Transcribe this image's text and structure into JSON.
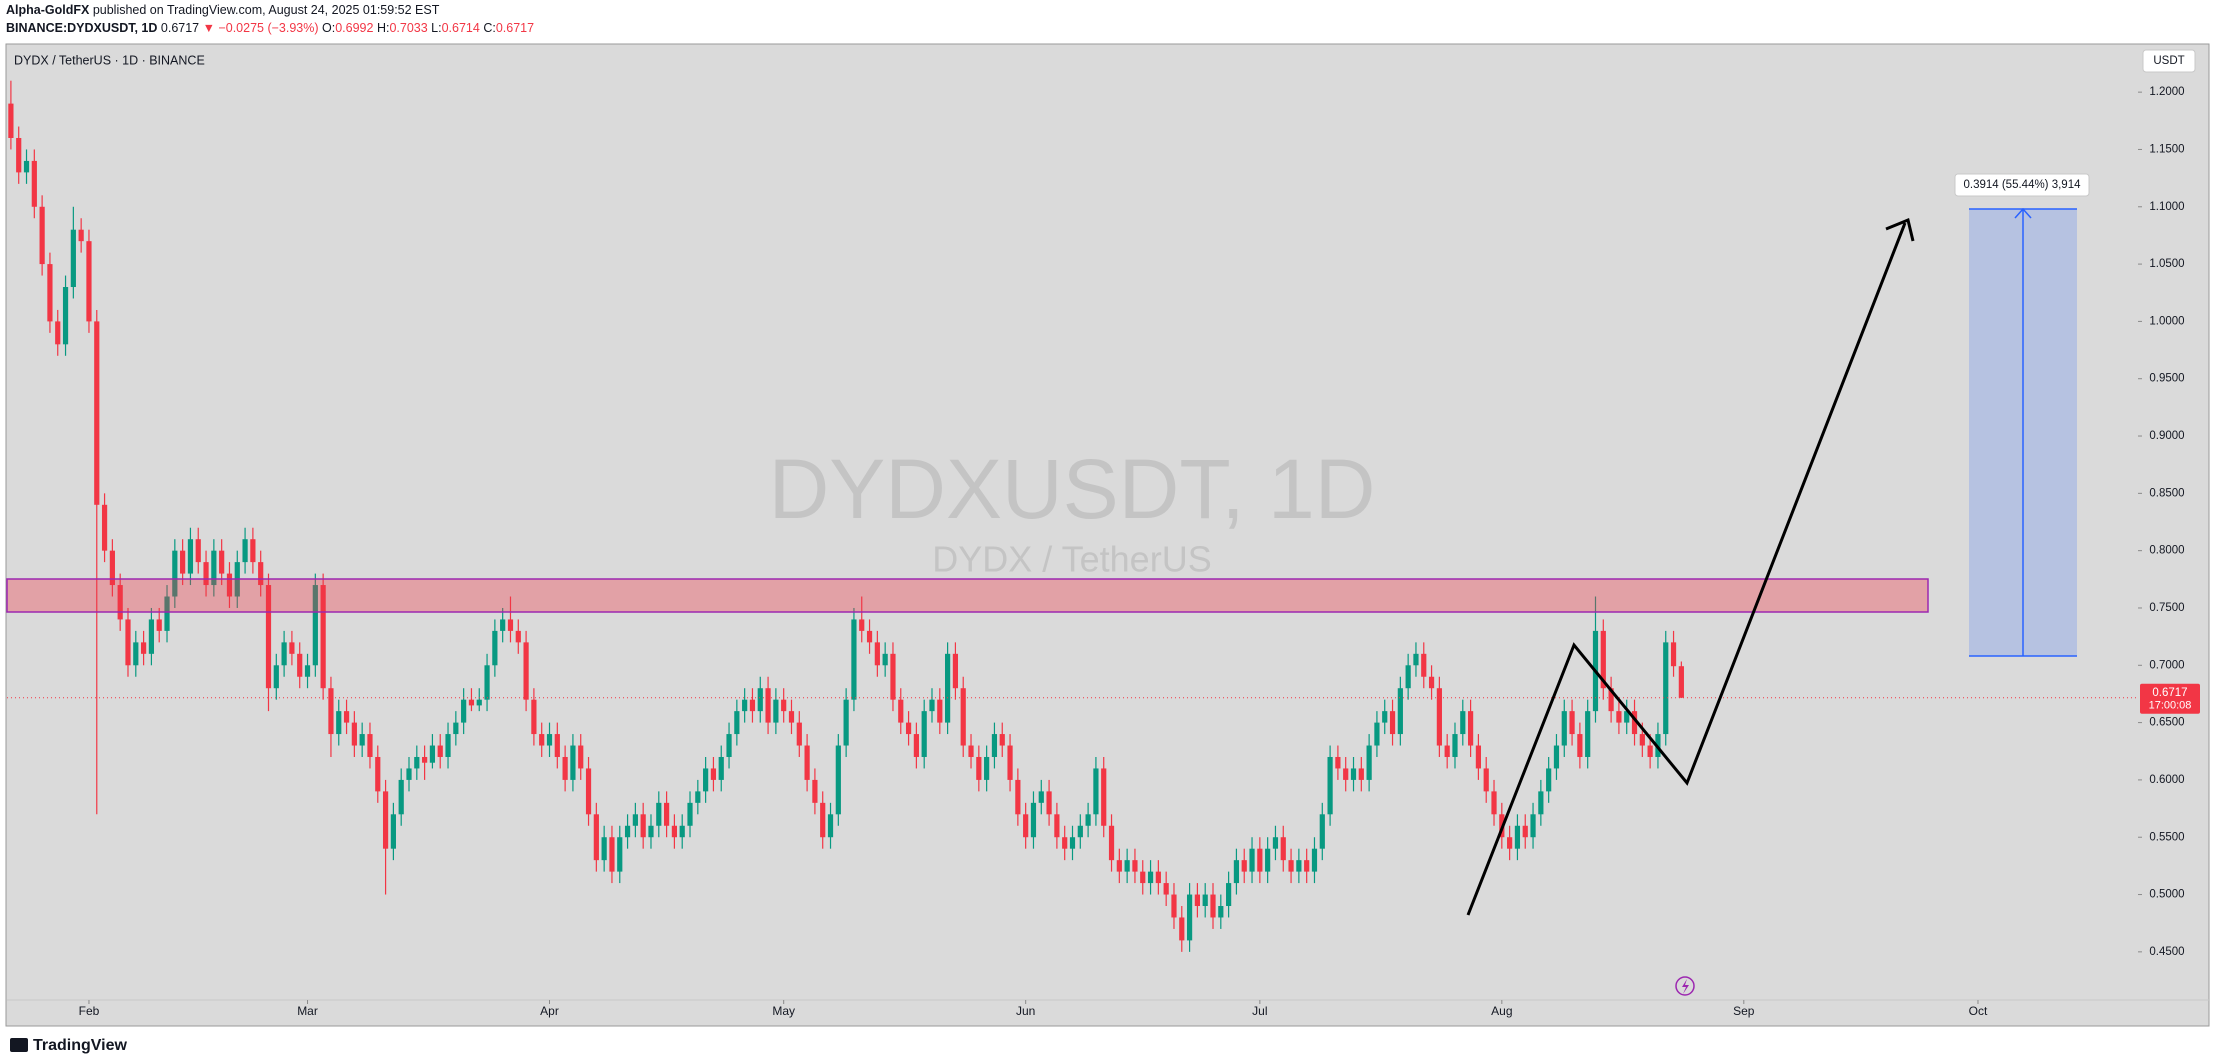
{
  "header": {
    "author": "Alpha-GoldFX",
    "published": "published on TradingView.com, August 24, 2025 01:59:52 EST",
    "symbol": "BINANCE:DYDXUSDT, 1D",
    "change": "▼ −0.0275 (−3.93%)",
    "ohlc_labels": [
      "O:",
      "H:",
      "L:",
      "C:"
    ]
  },
  "chart_data": {
    "type": "candlestick",
    "title": "DYDX / TetherUS · 1D · BINANCE",
    "watermark": "DYDXUSDT, 1D",
    "watermark_subtitle": "DYDX / TetherUS",
    "currency": "USDT",
    "countdown": "17:00:08",
    "measure_label": "0.3914 (55.44%) 3,914",
    "up_color": "#089981",
    "down_color": "#f23645",
    "grid": false,
    "open": [
      1.19,
      1.16,
      1.13,
      1.14,
      1.1,
      1.05,
      1.0,
      0.98,
      1.03,
      1.08,
      1.07,
      1.0,
      0.84,
      0.8,
      0.77,
      0.74,
      0.7,
      0.72,
      0.71,
      0.74,
      0.73,
      0.76,
      0.8,
      0.78,
      0.81,
      0.79,
      0.77,
      0.8,
      0.78,
      0.76,
      0.79,
      0.81,
      0.79,
      0.77,
      0.68,
      0.7,
      0.72,
      0.71,
      0.69,
      0.7,
      0.77,
      0.68,
      0.64,
      0.66,
      0.65,
      0.63,
      0.64,
      0.62,
      0.59,
      0.54,
      0.57,
      0.6,
      0.61,
      0.62,
      0.615,
      0.63,
      0.62,
      0.64,
      0.65,
      0.67,
      0.665,
      0.67,
      0.7,
      0.73,
      0.74,
      0.73,
      0.72,
      0.67,
      0.64,
      0.63,
      0.64,
      0.62,
      0.6,
      0.63,
      0.61,
      0.57,
      0.53,
      0.55,
      0.52,
      0.55,
      0.56,
      0.57,
      0.55,
      0.56,
      0.58,
      0.56,
      0.55,
      0.56,
      0.58,
      0.59,
      0.61,
      0.6,
      0.62,
      0.64,
      0.66,
      0.67,
      0.66,
      0.68,
      0.65,
      0.67,
      0.66,
      0.65,
      0.63,
      0.6,
      0.58,
      0.55,
      0.57,
      0.63,
      0.67,
      0.74,
      0.73,
      0.72,
      0.7,
      0.71,
      0.67,
      0.65,
      0.64,
      0.62,
      0.66,
      0.67,
      0.65,
      0.71,
      0.68,
      0.63,
      0.62,
      0.6,
      0.62,
      0.64,
      0.63,
      0.6,
      0.57,
      0.55,
      0.58,
      0.59,
      0.57,
      0.55,
      0.54,
      0.55,
      0.56,
      0.57,
      0.61,
      0.56,
      0.53,
      0.52,
      0.53,
      0.52,
      0.51,
      0.52,
      0.51,
      0.5,
      0.48,
      0.46,
      0.5,
      0.49,
      0.5,
      0.48,
      0.49,
      0.51,
      0.53,
      0.52,
      0.54,
      0.52,
      0.54,
      0.55,
      0.53,
      0.52,
      0.53,
      0.52,
      0.54,
      0.57,
      0.62,
      0.61,
      0.6,
      0.61,
      0.6,
      0.63,
      0.65,
      0.66,
      0.64,
      0.68,
      0.7,
      0.71,
      0.69,
      0.68,
      0.63,
      0.62,
      0.64,
      0.66,
      0.63,
      0.61,
      0.59,
      0.57,
      0.55,
      0.54,
      0.56,
      0.55,
      0.57,
      0.59,
      0.61,
      0.63,
      0.66,
      0.64,
      0.62,
      0.66,
      0.73,
      0.68,
      0.66,
      0.65,
      0.66,
      0.64,
      0.63,
      0.62,
      0.64,
      0.72,
      0.6992
    ],
    "high": [
      1.21,
      1.17,
      1.15,
      1.15,
      1.11,
      1.06,
      1.01,
      1.04,
      1.1,
      1.09,
      1.08,
      1.01,
      0.85,
      0.81,
      0.78,
      0.75,
      0.73,
      0.73,
      0.75,
      0.75,
      0.77,
      0.81,
      0.81,
      0.82,
      0.82,
      0.8,
      0.81,
      0.81,
      0.79,
      0.8,
      0.82,
      0.82,
      0.8,
      0.78,
      0.71,
      0.73,
      0.73,
      0.72,
      0.71,
      0.78,
      0.78,
      0.69,
      0.67,
      0.67,
      0.66,
      0.65,
      0.65,
      0.63,
      0.6,
      0.58,
      0.61,
      0.62,
      0.63,
      0.63,
      0.64,
      0.64,
      0.65,
      0.66,
      0.68,
      0.68,
      0.68,
      0.71,
      0.74,
      0.75,
      0.76,
      0.74,
      0.73,
      0.68,
      0.65,
      0.65,
      0.65,
      0.63,
      0.64,
      0.64,
      0.62,
      0.58,
      0.56,
      0.56,
      0.56,
      0.57,
      0.58,
      0.58,
      0.57,
      0.59,
      0.59,
      0.57,
      0.57,
      0.59,
      0.6,
      0.62,
      0.62,
      0.63,
      0.65,
      0.67,
      0.68,
      0.68,
      0.69,
      0.69,
      0.68,
      0.68,
      0.67,
      0.66,
      0.64,
      0.61,
      0.59,
      0.58,
      0.64,
      0.68,
      0.75,
      0.76,
      0.74,
      0.73,
      0.72,
      0.72,
      0.68,
      0.66,
      0.65,
      0.67,
      0.68,
      0.68,
      0.72,
      0.72,
      0.69,
      0.64,
      0.63,
      0.63,
      0.65,
      0.65,
      0.64,
      0.61,
      0.58,
      0.59,
      0.6,
      0.6,
      0.58,
      0.56,
      0.56,
      0.57,
      0.58,
      0.62,
      0.62,
      0.57,
      0.54,
      0.54,
      0.54,
      0.53,
      0.53,
      0.53,
      0.52,
      0.51,
      0.49,
      0.51,
      0.51,
      0.51,
      0.51,
      0.5,
      0.52,
      0.54,
      0.54,
      0.55,
      0.55,
      0.55,
      0.56,
      0.56,
      0.54,
      0.54,
      0.54,
      0.55,
      0.58,
      0.63,
      0.63,
      0.62,
      0.62,
      0.62,
      0.64,
      0.66,
      0.67,
      0.67,
      0.69,
      0.71,
      0.72,
      0.72,
      0.7,
      0.69,
      0.64,
      0.65,
      0.67,
      0.67,
      0.64,
      0.62,
      0.6,
      0.58,
      0.56,
      0.57,
      0.57,
      0.58,
      0.6,
      0.62,
      0.64,
      0.67,
      0.67,
      0.65,
      0.67,
      0.76,
      0.74,
      0.69,
      0.67,
      0.67,
      0.67,
      0.65,
      0.64,
      0.65,
      0.73,
      0.73,
      0.7033
    ],
    "low": [
      1.15,
      1.12,
      1.12,
      1.09,
      1.04,
      0.99,
      0.97,
      0.97,
      1.02,
      1.06,
      0.99,
      0.57,
      0.79,
      0.76,
      0.73,
      0.69,
      0.69,
      0.7,
      0.7,
      0.72,
      0.72,
      0.75,
      0.77,
      0.77,
      0.78,
      0.76,
      0.76,
      0.77,
      0.75,
      0.75,
      0.78,
      0.78,
      0.76,
      0.66,
      0.67,
      0.69,
      0.7,
      0.68,
      0.68,
      0.69,
      0.67,
      0.62,
      0.63,
      0.64,
      0.62,
      0.62,
      0.61,
      0.58,
      0.5,
      0.53,
      0.56,
      0.59,
      0.6,
      0.6,
      0.61,
      0.61,
      0.61,
      0.63,
      0.64,
      0.66,
      0.66,
      0.66,
      0.69,
      0.72,
      0.72,
      0.71,
      0.66,
      0.63,
      0.62,
      0.62,
      0.61,
      0.59,
      0.59,
      0.6,
      0.56,
      0.52,
      0.52,
      0.51,
      0.51,
      0.54,
      0.55,
      0.54,
      0.54,
      0.55,
      0.55,
      0.54,
      0.54,
      0.55,
      0.57,
      0.58,
      0.59,
      0.59,
      0.61,
      0.63,
      0.65,
      0.65,
      0.65,
      0.64,
      0.64,
      0.65,
      0.64,
      0.62,
      0.59,
      0.57,
      0.54,
      0.54,
      0.56,
      0.62,
      0.66,
      0.72,
      0.71,
      0.69,
      0.69,
      0.66,
      0.64,
      0.63,
      0.61,
      0.61,
      0.65,
      0.64,
      0.64,
      0.67,
      0.62,
      0.61,
      0.59,
      0.59,
      0.61,
      0.62,
      0.59,
      0.56,
      0.54,
      0.54,
      0.57,
      0.56,
      0.54,
      0.53,
      0.53,
      0.54,
      0.55,
      0.56,
      0.55,
      0.52,
      0.51,
      0.51,
      0.51,
      0.5,
      0.5,
      0.5,
      0.49,
      0.47,
      0.45,
      0.45,
      0.48,
      0.48,
      0.47,
      0.47,
      0.48,
      0.5,
      0.51,
      0.51,
      0.51,
      0.51,
      0.53,
      0.52,
      0.51,
      0.51,
      0.51,
      0.51,
      0.53,
      0.56,
      0.6,
      0.59,
      0.59,
      0.59,
      0.59,
      0.62,
      0.64,
      0.63,
      0.63,
      0.67,
      0.69,
      0.68,
      0.67,
      0.62,
      0.61,
      0.61,
      0.63,
      0.62,
      0.6,
      0.58,
      0.56,
      0.54,
      0.53,
      0.53,
      0.54,
      0.54,
      0.56,
      0.58,
      0.6,
      0.62,
      0.63,
      0.61,
      0.61,
      0.65,
      0.67,
      0.65,
      0.64,
      0.64,
      0.63,
      0.62,
      0.61,
      0.61,
      0.63,
      0.69,
      0.6714
    ],
    "close": [
      1.16,
      1.13,
      1.14,
      1.1,
      1.05,
      1.0,
      0.98,
      1.03,
      1.08,
      1.07,
      1.0,
      0.84,
      0.8,
      0.77,
      0.74,
      0.7,
      0.72,
      0.71,
      0.74,
      0.73,
      0.76,
      0.8,
      0.78,
      0.81,
      0.79,
      0.77,
      0.8,
      0.78,
      0.76,
      0.79,
      0.81,
      0.79,
      0.77,
      0.68,
      0.7,
      0.72,
      0.71,
      0.69,
      0.7,
      0.77,
      0.68,
      0.64,
      0.66,
      0.65,
      0.63,
      0.64,
      0.62,
      0.59,
      0.54,
      0.57,
      0.6,
      0.61,
      0.62,
      0.615,
      0.63,
      0.62,
      0.64,
      0.65,
      0.67,
      0.665,
      0.67,
      0.7,
      0.73,
      0.74,
      0.73,
      0.72,
      0.67,
      0.64,
      0.63,
      0.64,
      0.62,
      0.6,
      0.63,
      0.61,
      0.57,
      0.53,
      0.55,
      0.52,
      0.55,
      0.56,
      0.57,
      0.55,
      0.56,
      0.58,
      0.56,
      0.55,
      0.56,
      0.58,
      0.59,
      0.61,
      0.6,
      0.62,
      0.64,
      0.66,
      0.67,
      0.66,
      0.68,
      0.65,
      0.67,
      0.66,
      0.65,
      0.63,
      0.6,
      0.58,
      0.55,
      0.57,
      0.63,
      0.67,
      0.74,
      0.73,
      0.72,
      0.7,
      0.71,
      0.67,
      0.65,
      0.64,
      0.62,
      0.66,
      0.67,
      0.65,
      0.71,
      0.68,
      0.63,
      0.62,
      0.6,
      0.62,
      0.64,
      0.63,
      0.6,
      0.57,
      0.55,
      0.58,
      0.59,
      0.57,
      0.55,
      0.54,
      0.55,
      0.56,
      0.57,
      0.61,
      0.56,
      0.53,
      0.52,
      0.53,
      0.52,
      0.51,
      0.52,
      0.51,
      0.5,
      0.48,
      0.46,
      0.5,
      0.49,
      0.5,
      0.48,
      0.49,
      0.51,
      0.53,
      0.52,
      0.54,
      0.52,
      0.54,
      0.55,
      0.53,
      0.52,
      0.53,
      0.52,
      0.54,
      0.57,
      0.62,
      0.61,
      0.6,
      0.61,
      0.6,
      0.63,
      0.65,
      0.66,
      0.64,
      0.68,
      0.7,
      0.71,
      0.69,
      0.68,
      0.63,
      0.62,
      0.64,
      0.66,
      0.63,
      0.61,
      0.59,
      0.57,
      0.55,
      0.54,
      0.56,
      0.55,
      0.57,
      0.59,
      0.61,
      0.63,
      0.66,
      0.64,
      0.62,
      0.66,
      0.73,
      0.68,
      0.66,
      0.65,
      0.66,
      0.64,
      0.63,
      0.62,
      0.64,
      0.72,
      0.6992,
      0.6717
    ],
    "ylim": [
      0.408,
      1.242
    ],
    "yticks": [
      {
        "value": 0.45,
        "label": "0.4500"
      },
      {
        "value": 0.5,
        "label": "0.5000"
      },
      {
        "value": 0.55,
        "label": "0.5500"
      },
      {
        "value": 0.6,
        "label": "0.6000"
      },
      {
        "value": 0.65,
        "label": "0.6500"
      },
      {
        "value": 0.7,
        "label": "0.7000"
      },
      {
        "value": 0.75,
        "label": "0.7500"
      },
      {
        "value": 0.8,
        "label": "0.8000"
      },
      {
        "value": 0.85,
        "label": "0.8500"
      },
      {
        "value": 0.9,
        "label": "0.9000"
      },
      {
        "value": 0.95,
        "label": "0.9500"
      },
      {
        "value": 1.0,
        "label": "1.0000"
      },
      {
        "value": 1.05,
        "label": "1.0500"
      },
      {
        "value": 1.1,
        "label": "1.1000"
      },
      {
        "value": 1.15,
        "label": "1.1500"
      },
      {
        "value": 1.2,
        "label": "1.2000"
      }
    ],
    "xlim": [
      -0.5,
      272.5
    ],
    "xticks": [
      {
        "value": 10,
        "label": "Feb"
      },
      {
        "value": 38,
        "label": "Mar"
      },
      {
        "value": 69,
        "label": "Apr"
      },
      {
        "value": 99,
        "label": "May"
      },
      {
        "value": 130,
        "label": "Jun"
      },
      {
        "value": 160,
        "label": "Jul"
      },
      {
        "value": 191,
        "label": "Aug"
      },
      {
        "value": 222,
        "label": "Sep"
      },
      {
        "value": 252,
        "label": "Oct"
      }
    ]
  },
  "footer": {
    "brand": "TradingView"
  }
}
